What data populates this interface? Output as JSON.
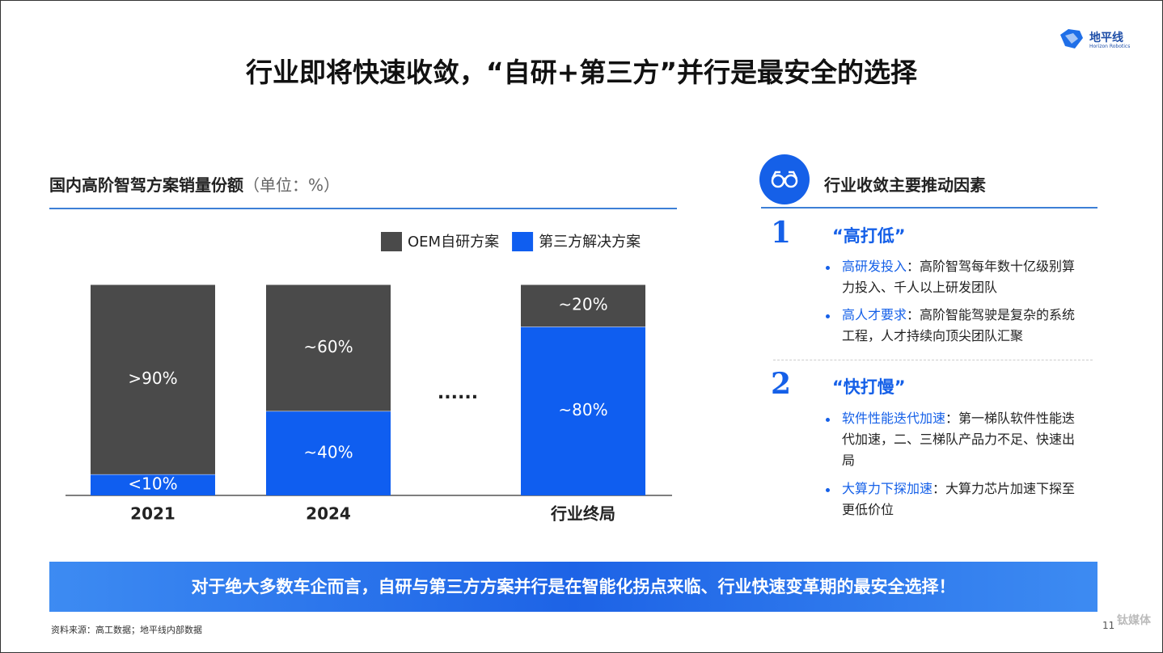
{
  "slide_title": "行业即将快速收敛，“自研+第三方”并行是最安全的选择",
  "logo": {
    "name": "地平线",
    "subtitle": "Horizon Robotics"
  },
  "chart_data": {
    "type": "bar",
    "stacked": true,
    "title": "国内高阶智驾方案销量份额",
    "unit_note": "（单位：%）",
    "categories": [
      "2021",
      "2024",
      null,
      "行业终局"
    ],
    "annotation": "......",
    "series": [
      {
        "name": "OEM自研方案",
        "color": "#4a4a4a",
        "values": [
          90,
          60,
          null,
          20
        ],
        "value_labels": [
          ">90%",
          "~60%",
          null,
          "~20%"
        ]
      },
      {
        "name": "第三方解决方案",
        "color": "#0f5ef0",
        "values": [
          10,
          40,
          null,
          80
        ],
        "value_labels": [
          "<10%",
          "~40%",
          null,
          "~80%"
        ]
      }
    ]
  },
  "factors": {
    "heading": "行业收敛主要推动因素",
    "items": [
      {
        "number": "1",
        "title": "“高打低”",
        "bullets": [
          {
            "label": "高研发投入",
            "text": "：高阶智驾每年数十亿级别算力投入、千人以上研发团队"
          },
          {
            "label": "高人才要求",
            "text": "：高阶智能驾驶是复杂的系统工程，人才持续向顶尖团队汇聚"
          }
        ]
      },
      {
        "number": "2",
        "title": "“快打慢”",
        "bullets": [
          {
            "label": "软件性能迭代加速",
            "text": "：第一梯队软件性能迭代加速，二、三梯队产品力不足、快速出局"
          },
          {
            "label": "大算力下探加速",
            "text": "：大算力芯片加速下探至更低价位"
          }
        ]
      }
    ]
  },
  "banner": "对于绝大多数车企而言，自研与第三方方案并行是在智能化拐点来临、行业快速变革期的最安全选择！",
  "source": "资料来源：高工数据；地平线内部数据",
  "page_number": "11",
  "watermark": "钛媒体"
}
